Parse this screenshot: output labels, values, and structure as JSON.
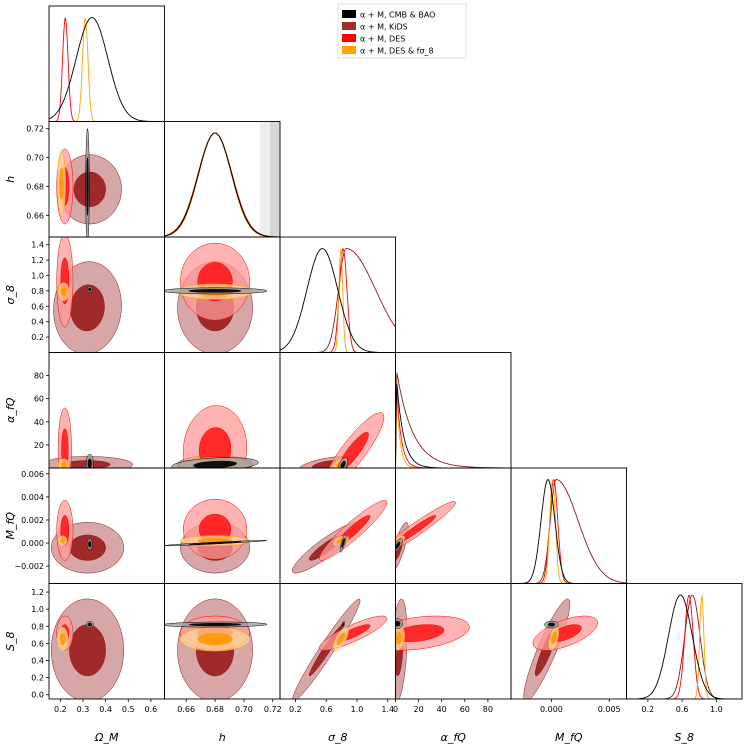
{
  "chart_data": {
    "type": "corner",
    "description": "Triangle (corner) plot of 1D and 2D marginalized posteriors",
    "parameters": [
      "Omega_M",
      "h",
      "sigma_8",
      "alpha_fQ",
      "M_fQ",
      "S_8"
    ],
    "axis_labels": [
      "Ω_M",
      "h",
      "σ_8",
      "α_fQ",
      "M_fQ",
      "S_8"
    ],
    "ranges": [
      [
        0.15,
        0.66
      ],
      [
        0.645,
        0.725
      ],
      [
        0.0,
        1.5
      ],
      [
        0.0,
        100.0
      ],
      [
        -0.0035,
        0.0065
      ],
      [
        -0.05,
        1.3
      ]
    ],
    "x_ticks": [
      [
        "0.2",
        "0.3",
        "0.4",
        "0.5",
        "0.6"
      ],
      [
        "0.66",
        "0.68",
        "0.70",
        "0.72"
      ],
      [
        "0.2",
        "0.6",
        "1.0",
        "1.4"
      ],
      [
        "0",
        "20",
        "40",
        "60",
        "80"
      ],
      [
        "0.000",
        "0.005"
      ],
      [
        "0.2",
        "0.6",
        "1.0"
      ]
    ],
    "y_ticks": [
      [],
      [
        "0.66",
        "0.68",
        "0.70",
        "0.72"
      ],
      [
        "0.2",
        "0.4",
        "0.6",
        "0.8",
        "1.0",
        "1.2",
        "1.4"
      ],
      [
        "20",
        "40",
        "60",
        "80"
      ],
      [
        "−0.002",
        "0.000",
        "0.002",
        "0.004",
        "0.006"
      ],
      [
        "0.0",
        "0.2",
        "0.4",
        "0.6",
        "0.8",
        "1.0",
        "1.2"
      ]
    ],
    "legend": {
      "position": "top-right",
      "entries": [
        {
          "label": "α + M, CMB & BAO",
          "color": "#000000"
        },
        {
          "label": "α + M, KiDS",
          "color": "#a52a2a"
        },
        {
          "label": "α + M, DES",
          "color": "#ff0000"
        },
        {
          "label": "α + M, DES & fσ_8",
          "color": "#ffa500"
        }
      ]
    },
    "series": [
      {
        "name": "α + M, CMB & BAO",
        "color": "#000000",
        "fill_inner": "#000000",
        "fill_outer": "#9a9a9a",
        "mean": [
          0.34,
          0.68,
          0.55,
          8.0,
          -0.0003,
          0.58
        ],
        "sd": [
          0.07,
          0.012,
          0.2,
          10.0,
          0.0006,
          0.14
        ],
        "corr": [
          [
            1,
            0.85
          ],
          [
            0.1,
            0.1
          ],
          [
            0.1,
            0.1
          ],
          [
            0.1,
            0.1
          ],
          [
            0.1,
            0.1
          ],
          [
            0.1,
            0.1
          ]
        ],
        "ellipses_inner_outer": "thin",
        "hists": [
          {
            "type": "gauss",
            "mean": 0.34,
            "sd": 0.07
          },
          {
            "type": "gauss",
            "mean": 0.68,
            "sd": 0.0115
          },
          {
            "type": "gauss",
            "mean": 0.55,
            "sd": 0.2
          },
          {
            "type": "decay",
            "scale": 6
          },
          {
            "type": "gauss",
            "mean": -0.0003,
            "sd": 0.0006
          },
          {
            "type": "gauss",
            "mean": 0.58,
            "sd": 0.14
          }
        ]
      },
      {
        "name": "α + M, KiDS",
        "color": "#8b1a1a",
        "fill_inner": "#9a1c1c",
        "fill_outer": "#c98a8a",
        "mean": [
          0.32,
          0.672,
          0.58,
          3.0,
          0.0,
          0.56
        ],
        "sd": [
          0.09,
          0.012,
          0.3,
          6.0,
          0.0012,
          0.3
        ],
        "hists": [
          null,
          {
            "type": "gauss",
            "mean": 0.68,
            "sd": 0.0118
          },
          {
            "type": "skew",
            "mean": 0.86,
            "sd": 0.1,
            "tail": 0.28
          },
          {
            "type": "decay",
            "scale": 14
          },
          {
            "type": "skew",
            "mean": 0.0004,
            "sd": 0.0005,
            "tail": 0.0014
          },
          {
            "type": "gauss",
            "mean": 0.72,
            "sd": 0.09
          }
        ]
      },
      {
        "name": "α + M, DES",
        "color": "#ff0000",
        "fill_inner": "#ff1a1a",
        "fill_outer": "#ff9a9a",
        "mean": [
          0.22,
          0.68,
          0.92,
          12.0,
          0.001,
          0.72
        ],
        "sd": [
          0.025,
          0.012,
          0.3,
          15.0,
          0.0012,
          0.1
        ],
        "hists": [
          {
            "type": "gauss",
            "mean": 0.222,
            "sd": 0.012
          },
          {
            "type": "gauss",
            "mean": 0.68,
            "sd": 0.0115
          },
          {
            "type": "gauss",
            "mean": 0.82,
            "sd": 0.05
          },
          {
            "type": "decay",
            "scale": 4
          },
          {
            "type": "gauss",
            "mean": 0.0002,
            "sd": 0.00035
          },
          {
            "type": "gauss",
            "mean": 0.68,
            "sd": 0.05
          }
        ]
      },
      {
        "name": "α + M, DES & fσ_8",
        "color": "#ffa500",
        "fill_inner": "#ff9900",
        "fill_outer": "#ffd79a",
        "mean": [
          0.21,
          0.683,
          0.79,
          4.0,
          0.0003,
          0.66
        ],
        "sd": [
          0.012,
          0.011,
          0.06,
          5.0,
          0.0003,
          0.05
        ],
        "hists": [
          {
            "type": "gauss",
            "mean": 0.31,
            "sd": 0.012
          },
          {
            "type": "gauss",
            "mean": 0.68,
            "sd": 0.0113
          },
          {
            "type": "gauss",
            "mean": 0.79,
            "sd": 0.025
          },
          {
            "type": "decay",
            "scale": 3
          },
          {
            "type": "gauss",
            "mean": 0.0001,
            "sd": 0.00025
          },
          {
            "type": "gauss",
            "mean": 0.83,
            "sd": 0.025
          }
        ]
      }
    ],
    "h_prior_band": {
      "light": [
        0.711,
        0.718
      ],
      "dark": [
        0.718,
        0.725
      ]
    }
  }
}
